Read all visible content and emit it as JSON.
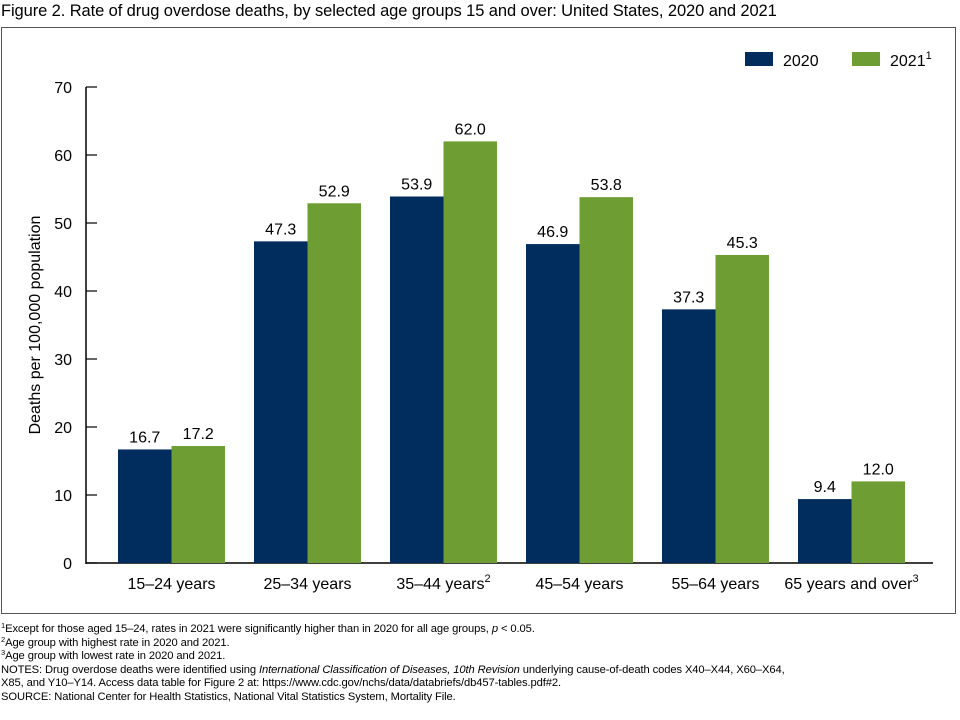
{
  "title": "Figure 2. Rate of drug overdose deaths, by selected age groups 15 and over: United States, 2020 and 2021",
  "chart_data": {
    "type": "bar",
    "title": "Figure 2. Rate of drug overdose deaths, by selected age groups 15 and over: United States, 2020 and 2021",
    "xlabel": "",
    "ylabel": "Deaths per 100,000 population",
    "ylim": [
      0,
      70
    ],
    "yticks": [
      0,
      10,
      20,
      30,
      40,
      50,
      60,
      70
    ],
    "grid": false,
    "legend_position": "top-right",
    "categories": [
      "15–24 years",
      "25–34 years",
      "35–44 years",
      "45–54 years",
      "55–64 years",
      "65 years and over"
    ],
    "category_superscripts": [
      "",
      "",
      "2",
      "",
      "",
      "3"
    ],
    "series": [
      {
        "name": "2020",
        "superscript": "",
        "color": "#002d5e",
        "values": [
          16.7,
          47.3,
          53.9,
          46.9,
          37.3,
          9.4
        ]
      },
      {
        "name": "2021",
        "superscript": "1",
        "color": "#6d9d33",
        "values": [
          17.2,
          52.9,
          62.0,
          53.8,
          45.3,
          12.0
        ]
      }
    ]
  },
  "footnotes": {
    "fn1": {
      "mark": "1",
      "text_a": "Except for those aged 15–24, rates in 2021 were significantly higher than in 2020 for all age groups, ",
      "italic": "p",
      "text_b": " < 0.05."
    },
    "fn2": {
      "mark": "2",
      "text": "Age group with highest rate in 2020 and 2021."
    },
    "fn3": {
      "mark": "3",
      "text": "Age group with lowest rate in 2020 and 2021."
    },
    "notes": {
      "prefix": "NOTES: Drug overdose deaths were identified using ",
      "italic": "International Classification of Diseases, 10th Revision",
      "suffix": " underlying cause-of-death codes X40–X44, X60–X64,",
      "line2": "X85, and Y10–Y14. Access data table for Figure 2 at: https://www.cdc.gov/nchs/data/databriefs/db457-tables.pdf#2."
    },
    "source": "SOURCE: National Center for Health Statistics, National Vital Statistics System, Mortality File."
  }
}
